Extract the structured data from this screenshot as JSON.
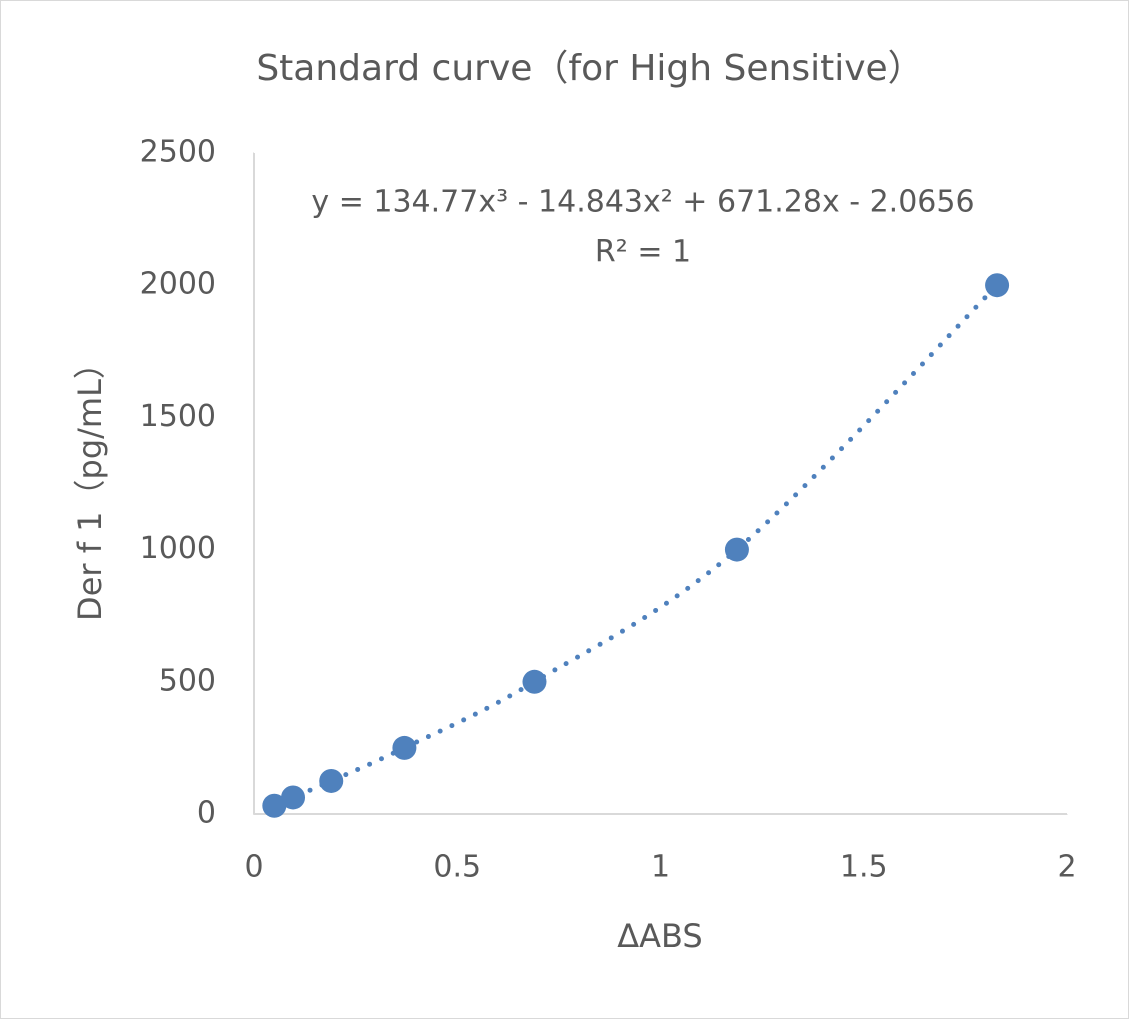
{
  "chart_data": {
    "type": "scatter",
    "title": "Standard curve（for High Sensitive）",
    "annotations": [
      "y = 134.77x³ - 14.843x² + 671.28x - 2.0656",
      "R² = 1"
    ],
    "x_label": "ΔABS",
    "y_label": "Der f 1（pg/mL）",
    "x": [
      0.05,
      0.096,
      0.19,
      0.37,
      0.69,
      1.188,
      1.828
    ],
    "y": [
      31.25,
      62.5,
      125,
      250,
      500,
      1000,
      2000
    ],
    "color": "#4f81bd",
    "trendline": "dotted",
    "xlim": [
      0,
      2
    ],
    "xticks": [
      0,
      0.5,
      1,
      1.5,
      2
    ],
    "ylim": [
      0,
      2500
    ],
    "yticks": [
      0,
      500,
      1000,
      1500,
      2000,
      2500
    ],
    "grid": false
  }
}
